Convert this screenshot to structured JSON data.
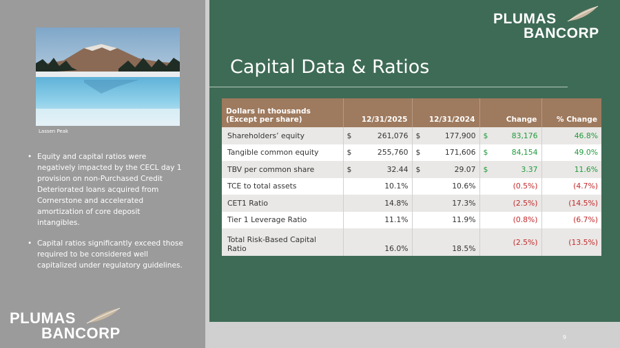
{
  "sidebar": {
    "photo_caption": "Lassen Peak",
    "bullets": [
      "Equity and capital ratios were negatively impacted by the CECL day 1 provision on non-Purchased Credit Deteriorated loans acquired from Cornerstone and accelerated amortization of core deposit intangibles.",
      "Capital ratios significantly exceed those required to be considered well capitalized under regulatory guidelines."
    ]
  },
  "logo": {
    "line1": "PLUMAS",
    "line2": "BANCORP"
  },
  "slide": {
    "title": "Capital Data & Ratios",
    "page_number": "9"
  },
  "table": {
    "headers": {
      "label_line1": "Dollars in thousands",
      "label_line2": "(Except per share)",
      "col1": "12/31/2025",
      "col2": "12/31/2024",
      "col3": "Change",
      "col4": "% Change"
    },
    "rows": [
      {
        "label": "Shareholders’ equity",
        "c1_cur": "$",
        "c1": "261,076",
        "c2_cur": "$",
        "c2": "177,900",
        "c3_cur": "$",
        "c3": "83,176",
        "c4": "46.8%"
      },
      {
        "label": "Tangible common equity",
        "c1_cur": "$",
        "c1": "255,760",
        "c2_cur": "$",
        "c2": "171,606",
        "c3_cur": "$",
        "c3": "84,154",
        "c4": "49.0%"
      },
      {
        "label": "TBV per common share",
        "c1_cur": "$",
        "c1": "32.44",
        "c2_cur": "$",
        "c2": "29.07",
        "c3_cur": "$",
        "c3": "3.37",
        "c4": "11.6%"
      },
      {
        "label": "TCE to total assets",
        "c1": "10.1%",
        "c2": "10.6%",
        "c3": "(0.5%)",
        "c4": "(4.7%)"
      },
      {
        "label": "CET1 Ratio",
        "c1": "14.8%",
        "c2": "17.3%",
        "c3": "(2.5%)",
        "c4": "(14.5%)"
      },
      {
        "label": "Tier 1 Leverage Ratio",
        "c1": "11.1%",
        "c2": "11.9%",
        "c3": "(0.8%)",
        "c4": "(6.7%)"
      },
      {
        "label_line1": "Total Risk-Based Capital",
        "label_line2": "Ratio",
        "c1": "16.0%",
        "c2": "18.5%",
        "c3": "(2.5%)",
        "c4": "(13.5%)"
      }
    ]
  },
  "colors": {
    "panel_green": "#3e6b56",
    "sidebar_gray": "#9b9b9b",
    "header_brown": "#9e7a5e",
    "positive_green": "#1f9a3b",
    "negative_red": "#c3282a"
  }
}
